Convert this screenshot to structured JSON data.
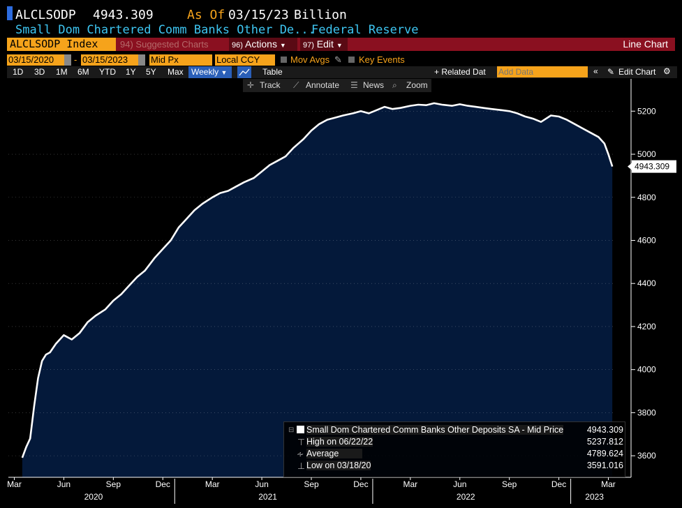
{
  "header": {
    "ticker": "ALCLSODP",
    "last_value": "4943.309",
    "as_of_label": "As Of",
    "as_of_date": "03/15/23",
    "unit": "Billion",
    "description": "Small Dom Chartered Comm Banks Other De...",
    "source": "Federal Reserve"
  },
  "toolbar": {
    "security": "ALCLSODP Index",
    "suggested_num": "94)",
    "suggested": "Suggested Charts",
    "actions_num": "96)",
    "actions": "Actions",
    "edit_num": "97)",
    "edit": "Edit",
    "chart_type": "Line Chart"
  },
  "controls": {
    "start_date": "03/15/2020",
    "end_date": "03/15/2023",
    "price_field": "Mid Px",
    "currency": "Local CCY",
    "mov_avgs": "Mov Avgs",
    "key_events": "Key Events",
    "ranges": [
      "1D",
      "3D",
      "1M",
      "6M",
      "YTD",
      "1Y",
      "5Y",
      "Max"
    ],
    "frequency": "Weekly",
    "table": "Table",
    "related_data": "+ Related Dat",
    "add_data_placeholder": "Add Data",
    "edit_chart": "Edit Chart",
    "tools": [
      "Track",
      "Annotate",
      "News",
      "Zoom"
    ]
  },
  "legend": {
    "series_name": "Small Dom Chartered Comm Banks Other Deposits SA - Mid Price",
    "series_value": "4943.309",
    "high_label": "High on 06/22/22",
    "high_value": "5237.812",
    "avg_label": "Average",
    "avg_value": "4789.624",
    "low_label": "Low on 03/18/20",
    "low_value": "3591.016"
  },
  "colors": {
    "area_fill": "#04193a",
    "line": "#ffffff",
    "orange": "#f6a31b",
    "cyan": "#3ec6f2",
    "dark_red": "#8a1020"
  },
  "chart_data": {
    "type": "area",
    "title": "Small Dom Chartered Comm Banks Other Deposits SA - Mid Price",
    "ylabel": "Billion",
    "xlabel": "",
    "ylim": [
      3500,
      5350
    ],
    "y_ticks": [
      3600,
      3800,
      4000,
      4200,
      4400,
      4600,
      4800,
      5000,
      5200
    ],
    "x_range": [
      2020.18,
      2023.2
    ],
    "x_month_ticks": [
      {
        "label": "Mar",
        "x": 2020.17
      },
      {
        "label": "Jun",
        "x": 2020.42
      },
      {
        "label": "Sep",
        "x": 2020.67
      },
      {
        "label": "Dec",
        "x": 2020.92
      },
      {
        "label": "Mar",
        "x": 2021.17
      },
      {
        "label": "Jun",
        "x": 2021.42
      },
      {
        "label": "Sep",
        "x": 2021.67
      },
      {
        "label": "Dec",
        "x": 2021.92
      },
      {
        "label": "Mar",
        "x": 2022.17
      },
      {
        "label": "Jun",
        "x": 2022.42
      },
      {
        "label": "Sep",
        "x": 2022.67
      },
      {
        "label": "Dec",
        "x": 2022.92
      },
      {
        "label": "Mar",
        "x": 2023.17
      }
    ],
    "x_year_labels": [
      {
        "label": "2020",
        "x": 2020.57
      },
      {
        "label": "2021",
        "x": 2021.45
      },
      {
        "label": "2022",
        "x": 2022.45
      },
      {
        "label": "2023",
        "x": 2023.1
      }
    ],
    "series": [
      {
        "name": "Small Dom Chartered Comm Banks Other Deposits SA",
        "x": [
          2020.21,
          2020.23,
          2020.25,
          2020.27,
          2020.29,
          2020.31,
          2020.33,
          2020.35,
          2020.38,
          2020.42,
          2020.46,
          2020.5,
          2020.54,
          2020.58,
          2020.63,
          2020.67,
          2020.71,
          2020.75,
          2020.79,
          2020.83,
          2020.88,
          2020.92,
          2020.96,
          2021.0,
          2021.04,
          2021.08,
          2021.12,
          2021.17,
          2021.21,
          2021.25,
          2021.29,
          2021.33,
          2021.38,
          2021.42,
          2021.46,
          2021.5,
          2021.54,
          2021.58,
          2021.63,
          2021.67,
          2021.71,
          2021.75,
          2021.79,
          2021.83,
          2021.88,
          2021.92,
          2021.96,
          2022.0,
          2022.04,
          2022.08,
          2022.12,
          2022.17,
          2022.21,
          2022.25,
          2022.29,
          2022.33,
          2022.38,
          2022.42,
          2022.46,
          2022.5,
          2022.54,
          2022.58,
          2022.63,
          2022.67,
          2022.71,
          2022.75,
          2022.79,
          2022.83,
          2022.88,
          2022.92,
          2022.96,
          2023.0,
          2023.04,
          2023.08,
          2023.12,
          2023.15,
          2023.17,
          2023.19
        ],
        "values": [
          3591,
          3640,
          3680,
          3830,
          3960,
          4040,
          4070,
          4080,
          4120,
          4160,
          4140,
          4170,
          4220,
          4250,
          4280,
          4320,
          4350,
          4390,
          4430,
          4460,
          4520,
          4560,
          4600,
          4660,
          4700,
          4740,
          4770,
          4800,
          4820,
          4830,
          4850,
          4870,
          4890,
          4920,
          4950,
          4970,
          4990,
          5030,
          5070,
          5110,
          5140,
          5160,
          5170,
          5180,
          5190,
          5200,
          5190,
          5205,
          5220,
          5210,
          5215,
          5225,
          5230,
          5228,
          5237,
          5230,
          5225,
          5232,
          5225,
          5220,
          5215,
          5210,
          5205,
          5200,
          5190,
          5175,
          5165,
          5150,
          5180,
          5175,
          5160,
          5140,
          5120,
          5100,
          5080,
          5050,
          5000,
          4943
        ]
      }
    ]
  }
}
